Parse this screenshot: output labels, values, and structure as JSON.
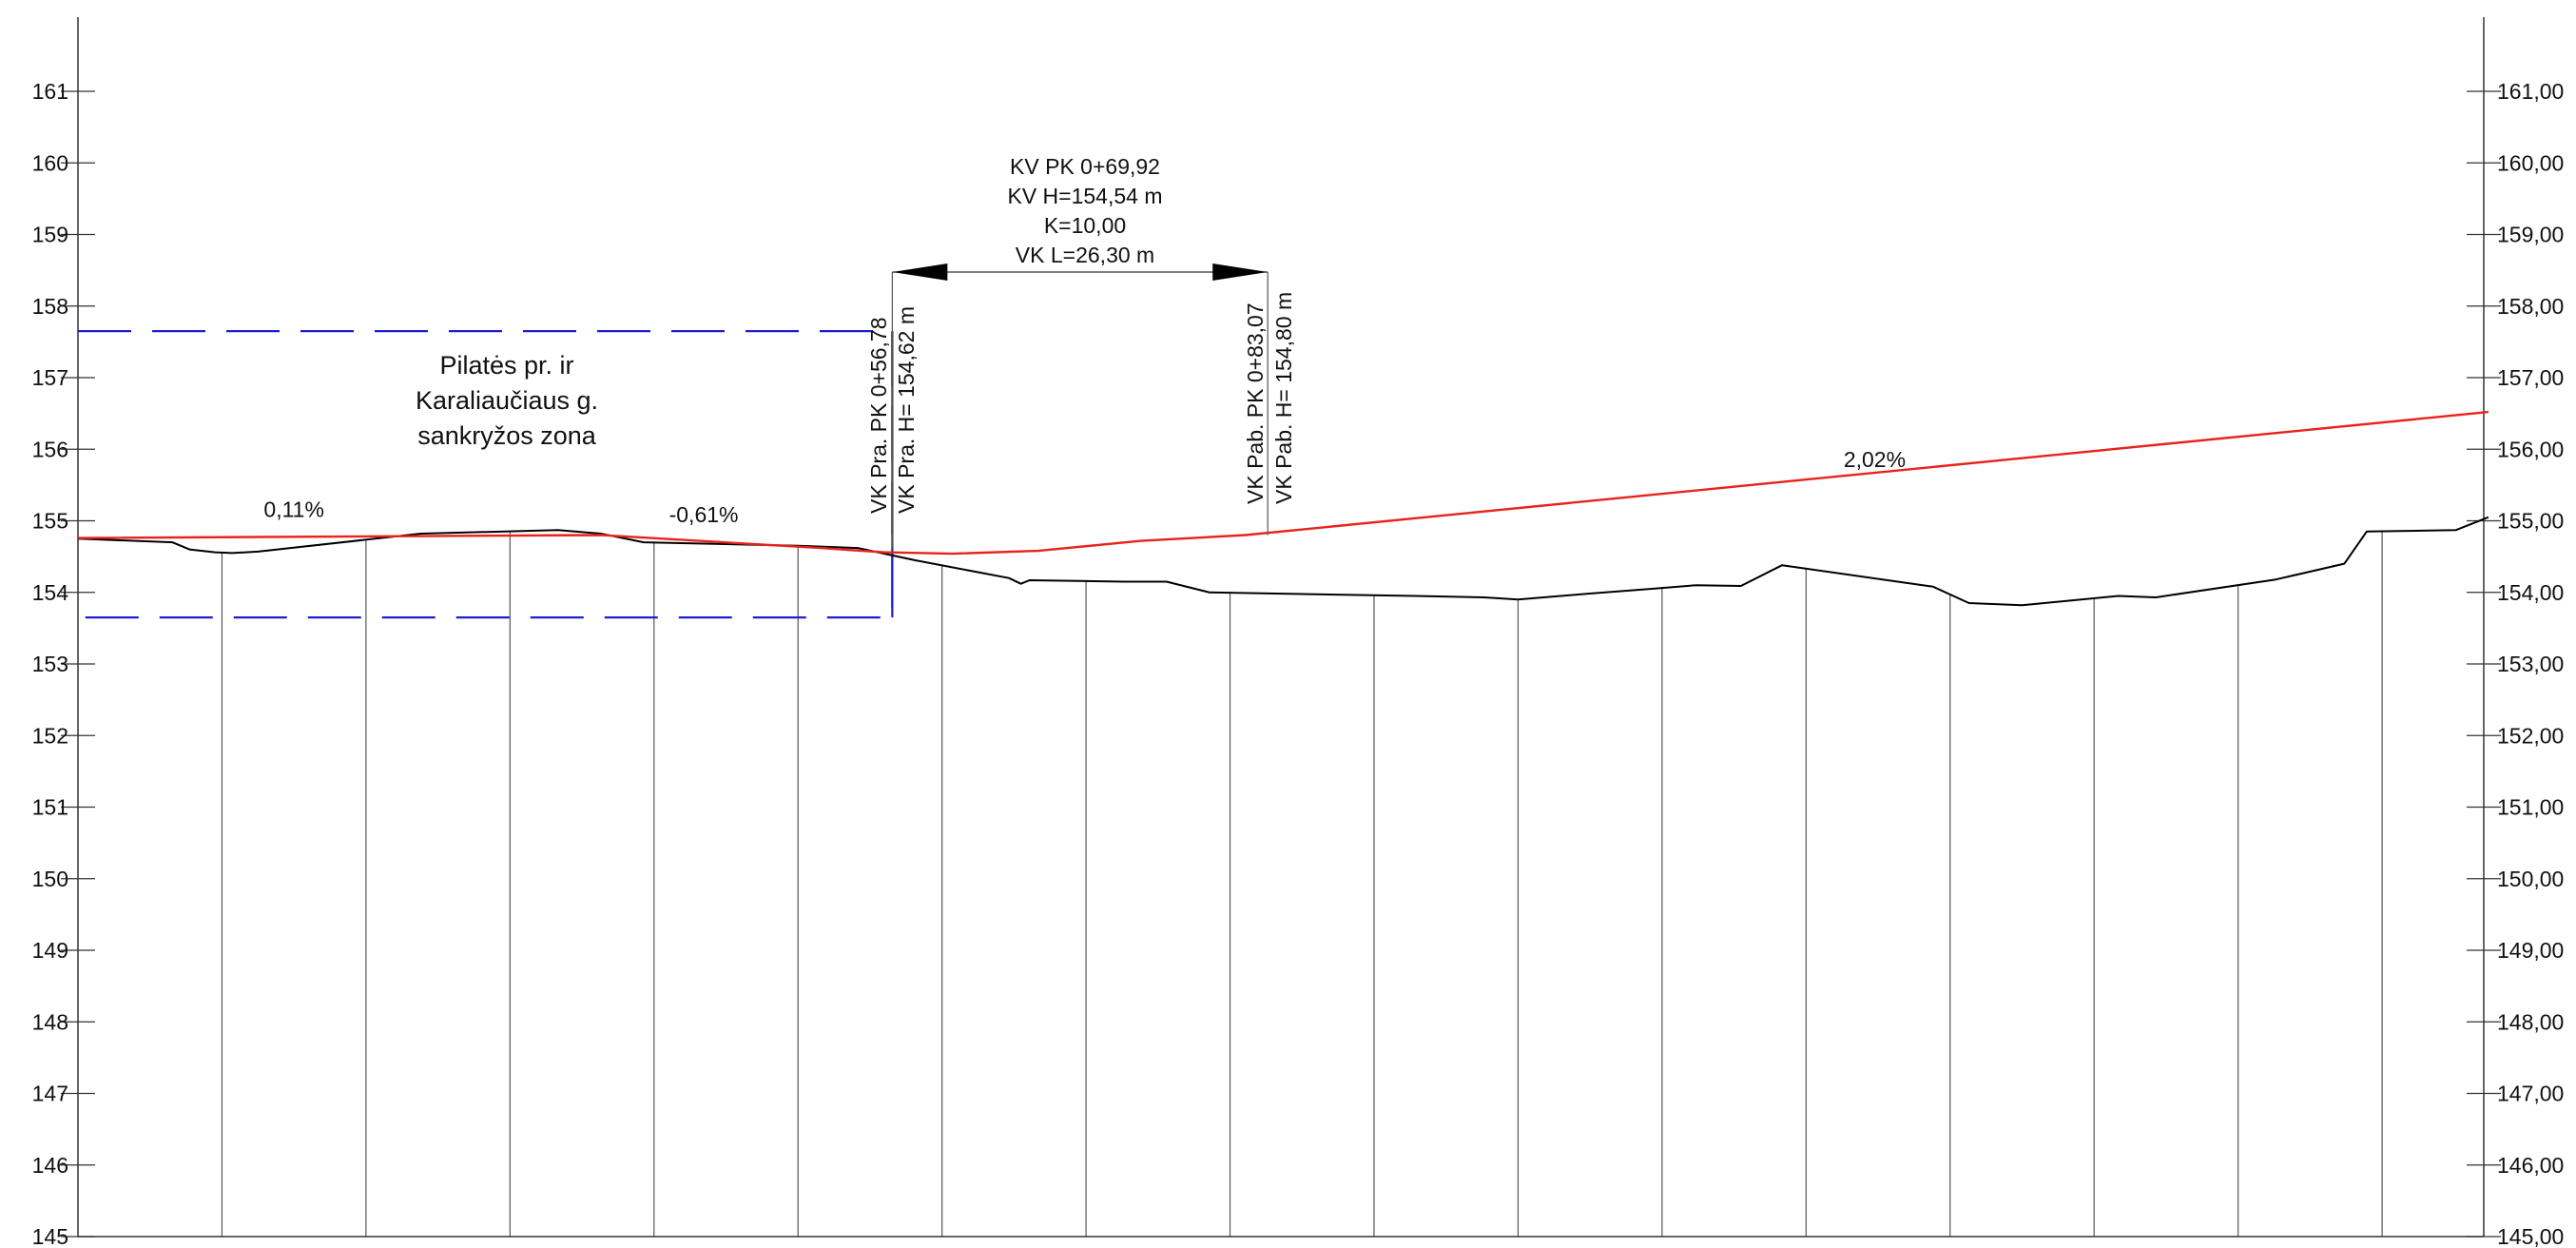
{
  "chart_data": {
    "type": "line",
    "y_range": [
      145,
      161
    ],
    "left_ticks": [
      "145",
      "146",
      "147",
      "148",
      "149",
      "150",
      "151",
      "152",
      "153",
      "154",
      "155",
      "156",
      "157",
      "158",
      "159",
      "160",
      "161"
    ],
    "right_ticks": [
      "145,00",
      "146,00",
      "147,00",
      "148,00",
      "149,00",
      "150,00",
      "151,00",
      "152,00",
      "153,00",
      "154,00",
      "155,00",
      "156,00",
      "157,00",
      "158,00",
      "159,00",
      "160,00",
      "161,00"
    ],
    "series": [
      {
        "color": "#000000",
        "points": [
          [
            0,
            154.75
          ],
          [
            55,
            154.7
          ],
          [
            65,
            154.6
          ],
          [
            80,
            154.56
          ],
          [
            90,
            154.55
          ],
          [
            105,
            154.57
          ],
          [
            200,
            154.82
          ],
          [
            280,
            154.87
          ],
          [
            305,
            154.82
          ],
          [
            330,
            154.7
          ],
          [
            420,
            154.65
          ],
          [
            455,
            154.62
          ],
          [
            488,
            154.45
          ],
          [
            543,
            154.2
          ],
          [
            550,
            154.12
          ],
          [
            555,
            154.17
          ],
          [
            610,
            154.15
          ],
          [
            635,
            154.15
          ],
          [
            660,
            154.0
          ],
          [
            780,
            153.95
          ],
          [
            820,
            153.93
          ],
          [
            840,
            153.9
          ],
          [
            880,
            153.98
          ],
          [
            918,
            154.05
          ],
          [
            944,
            154.1
          ],
          [
            970,
            154.09
          ],
          [
            994,
            154.38
          ],
          [
            1082,
            154.08
          ],
          [
            1103,
            153.85
          ],
          [
            1134,
            153.82
          ],
          [
            1190,
            153.95
          ],
          [
            1212,
            153.93
          ],
          [
            1282,
            154.18
          ],
          [
            1322,
            154.4
          ],
          [
            1335,
            154.85
          ],
          [
            1387,
            154.87
          ],
          [
            1406,
            155.05
          ]
        ]
      },
      {
        "color": "#e8231c",
        "points": [
          [
            0,
            154.76
          ],
          [
            305,
            154.8
          ],
          [
            433,
            154.62
          ],
          [
            470,
            154.56
          ],
          [
            510,
            154.54
          ],
          [
            560,
            154.58
          ],
          [
            620,
            154.72
          ],
          [
            681,
            154.8
          ],
          [
            1406,
            156.52
          ]
        ]
      }
    ],
    "station_lines_at": [
      84,
      168,
      252,
      336,
      420,
      504,
      588,
      672,
      756,
      840,
      924,
      1008,
      1092,
      1176,
      1260,
      1344
    ],
    "grades": [
      {
        "label": "0,11%",
        "x": 126,
        "y": 155.05
      },
      {
        "label": "-0,61%",
        "x": 365,
        "y": 154.98
      },
      {
        "label": "2,02%",
        "x": 1048,
        "y": 155.75
      }
    ],
    "zone_box": {
      "x0": 0,
      "x1": 475,
      "y_top": 157.65,
      "y_bottom": 153.65,
      "color": "#1f1fd0"
    },
    "zone_label": [
      "Pilatės pr. ir",
      "Karaliaučiaus g.",
      "sankryžos zona"
    ],
    "curve_info": [
      "KV PK 0+69,92",
      "KV H=154,54 m",
      "K=10,00",
      "VK L=26,30 m"
    ],
    "curve_start_labels": [
      "VK Pra. PK 0+56,78",
      "VK Pra. H= 154,62 m"
    ],
    "curve_end_labels": [
      "VK Pab. PK 0+83,07",
      "VK Pab. H= 154,80 m"
    ],
    "curve_start_x": 475,
    "curve_end_x": 694
  }
}
